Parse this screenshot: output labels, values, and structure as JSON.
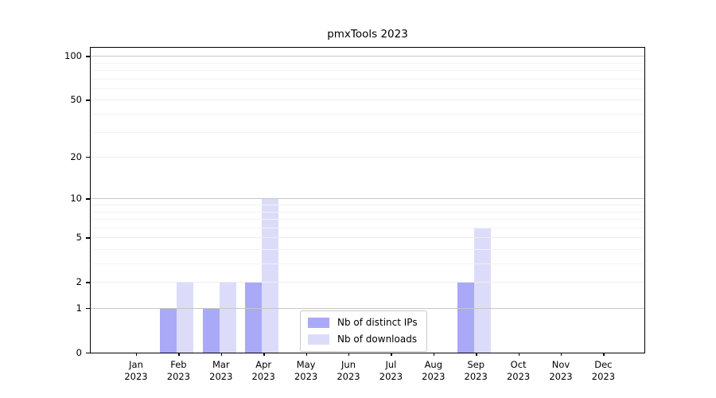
{
  "colors": {
    "distinct_ips": "#a9a9f8",
    "downloads": "#dcdcfa",
    "grid_decade": "#c6c6c6",
    "grid_labeled": "#ededed",
    "grid_minor": "#f2f2f2",
    "axis": "#000000",
    "background": "#ffffff"
  },
  "chart_data": {
    "type": "bar",
    "title": "pmxTools 2023",
    "categories": [
      "Jan",
      "Feb",
      "Mar",
      "Apr",
      "May",
      "Jun",
      "Jul",
      "Aug",
      "Sep",
      "Oct",
      "Nov",
      "Dec"
    ],
    "category_year": "2023",
    "series": [
      {
        "name": "Nb of distinct IPs",
        "color": "#a9a9f8",
        "values": [
          0,
          1,
          1,
          2,
          0,
          0,
          0,
          0,
          2,
          0,
          0,
          0
        ]
      },
      {
        "name": "Nb of downloads",
        "color": "#dcdcfa",
        "values": [
          0,
          2,
          2,
          10,
          0,
          0,
          0,
          0,
          6,
          0,
          0,
          0
        ]
      }
    ],
    "y_axis": {
      "scale": "log1p",
      "ticks": [
        0,
        1,
        2,
        5,
        10,
        20,
        50,
        100
      ],
      "minor_gridlines": [
        3,
        4,
        6,
        7,
        8,
        9,
        30,
        40,
        60,
        70,
        80,
        90
      ],
      "range": [
        0,
        115
      ]
    },
    "xlabel": "",
    "ylabel": "",
    "grid": true,
    "legend_position": "inside-bottom-center"
  }
}
